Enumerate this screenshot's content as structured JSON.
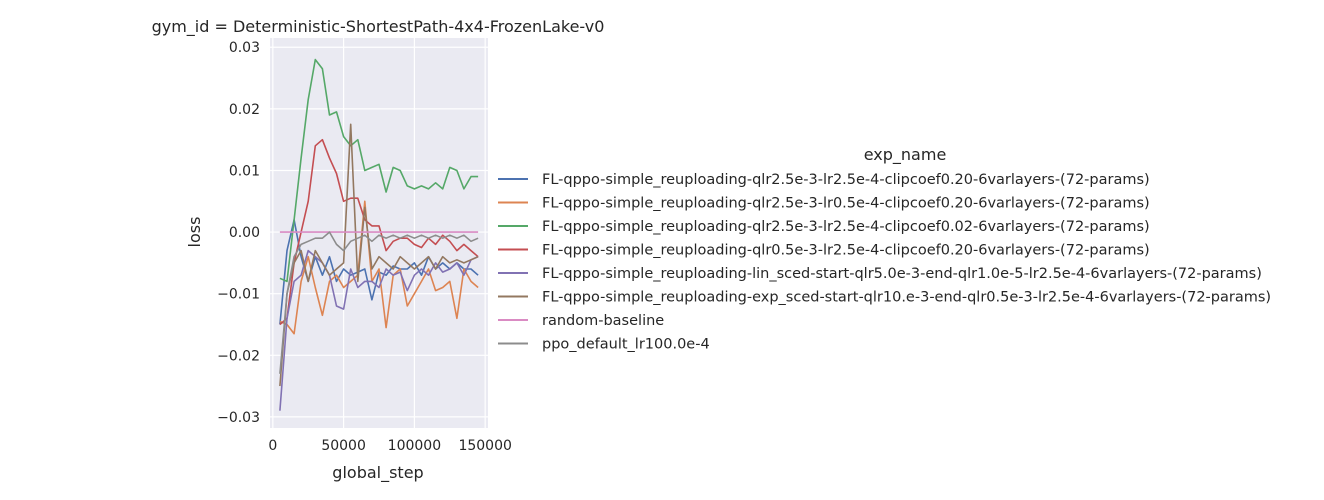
{
  "chart_data": {
    "type": "line",
    "title": "gym_id = Deterministic-ShortestPath-4x4-FrozenLake-v0",
    "xlabel": "global_step",
    "ylabel": "loss",
    "xlim": [
      -2000,
      152000
    ],
    "ylim": [
      -0.0318,
      0.0315
    ],
    "xticks": [
      0,
      50000,
      100000,
      150000
    ],
    "xtick_labels": [
      "0",
      "50000",
      "100000",
      "150000"
    ],
    "yticks": [
      -0.03,
      -0.02,
      -0.01,
      0.0,
      0.01,
      0.02,
      0.03
    ],
    "ytick_labels": [
      "−0.03",
      "−0.02",
      "−0.01",
      "0.00",
      "0.01",
      "0.02",
      "0.03"
    ],
    "grid": true,
    "legend_title": "exp_name",
    "legend_position": "right",
    "x": [
      5000,
      10000,
      15000,
      20000,
      25000,
      30000,
      35000,
      40000,
      45000,
      50000,
      55000,
      60000,
      65000,
      70000,
      75000,
      80000,
      85000,
      90000,
      95000,
      100000,
      105000,
      110000,
      115000,
      120000,
      125000,
      130000,
      135000,
      140000,
      145000
    ],
    "series": [
      {
        "name": "FL-qppo-simple_reuploading-qlr2.5e-3-lr2.5e-4-clipcoef0.20-6varlayers-(72-params)",
        "color": "#4c72b0",
        "values": [
          -0.015,
          -0.003,
          0.002,
          -0.004,
          -0.008,
          -0.004,
          -0.007,
          -0.004,
          -0.008,
          -0.006,
          -0.007,
          -0.0065,
          -0.006,
          -0.011,
          -0.0065,
          -0.007,
          -0.0055,
          -0.006,
          -0.006,
          -0.005,
          -0.007,
          -0.004,
          -0.006,
          -0.005,
          -0.006,
          -0.005,
          -0.006,
          -0.006,
          -0.007
        ]
      },
      {
        "name": "FL-qppo-simple_reuploading-qlr2.5e-3-lr0.5e-4-clipcoef0.20-6varlayers-(72-params)",
        "color": "#dd8452",
        "values": [
          -0.0145,
          -0.015,
          -0.0165,
          -0.008,
          -0.004,
          -0.009,
          -0.0135,
          -0.008,
          -0.007,
          -0.009,
          -0.008,
          -0.007,
          0.005,
          -0.008,
          -0.006,
          -0.0155,
          -0.007,
          -0.006,
          -0.012,
          -0.01,
          -0.008,
          -0.006,
          -0.0095,
          -0.009,
          -0.008,
          -0.014,
          -0.006,
          -0.008,
          -0.009
        ]
      },
      {
        "name": "FL-qppo-simple_reuploading-qlr2.5e-3-lr2.5e-4-clipcoef0.02-6varlayers-(72-params)",
        "color": "#55a868",
        "values": [
          -0.0075,
          -0.008,
          0.002,
          0.012,
          0.0215,
          0.028,
          0.0265,
          0.019,
          0.0195,
          0.0155,
          0.014,
          0.015,
          0.01,
          0.0105,
          0.011,
          0.0065,
          0.0105,
          0.01,
          0.0075,
          0.007,
          0.0075,
          0.007,
          0.008,
          0.007,
          0.0105,
          0.01,
          0.007,
          0.009,
          0.009
        ]
      },
      {
        "name": "FL-qppo-simple_reuploading-qlr0.5e-3-lr2.5e-4-clipcoef0.20-6varlayers-(72-params)",
        "color": "#c44e52",
        "values": [
          -0.015,
          -0.014,
          -0.005,
          0.0,
          0.005,
          0.014,
          0.015,
          0.012,
          0.0095,
          0.005,
          0.0055,
          0.0055,
          0.002,
          0.001,
          0.001,
          -0.003,
          -0.0015,
          -0.001,
          -0.001,
          -0.002,
          -0.0025,
          -0.001,
          -0.002,
          -0.0005,
          -0.0015,
          -0.003,
          -0.002,
          -0.003,
          -0.004
        ]
      },
      {
        "name": "FL-qppo-simple_reuploading-lin_sced-start-qlr5.0e-3-end-qlr1.0e-5-lr2.5e-4-6varlayers-(72-params)",
        "color": "#8172b3",
        "values": [
          -0.029,
          -0.014,
          -0.008,
          -0.007,
          -0.003,
          -0.004,
          -0.005,
          -0.007,
          -0.012,
          -0.0125,
          -0.006,
          -0.009,
          -0.008,
          -0.008,
          -0.009,
          -0.006,
          -0.007,
          -0.0065,
          -0.0095,
          -0.007,
          -0.006,
          -0.007,
          -0.005,
          -0.0065,
          -0.006,
          -0.005,
          -0.007,
          -0.0045,
          -0.004
        ]
      },
      {
        "name": "FL-qppo-simple_reuploading-exp_sced-start-qlr10.e-3-end-qlr0.5e-3-lr2.5e-4-6varlayers-(72-params)",
        "color": "#937860",
        "values": [
          -0.025,
          -0.01,
          -0.005,
          -0.003,
          -0.008,
          -0.003,
          -0.005,
          -0.007,
          -0.006,
          -0.005,
          0.0175,
          -0.008,
          0.004,
          -0.006,
          -0.004,
          -0.005,
          -0.006,
          -0.004,
          -0.005,
          -0.006,
          -0.005,
          -0.004,
          -0.006,
          -0.004,
          -0.005,
          -0.0045,
          -0.005,
          -0.0045,
          -0.004
        ]
      },
      {
        "name": "random-baseline",
        "color": "#da8bc3",
        "values": [
          0.0,
          0.0,
          0.0,
          0.0,
          0.0,
          0.0,
          0.0,
          0.0,
          0.0,
          0.0,
          0.0,
          0.0,
          0.0,
          0.0,
          0.0,
          0.0,
          0.0,
          0.0,
          0.0,
          0.0,
          0.0,
          0.0,
          0.0,
          0.0,
          0.0,
          0.0,
          0.0,
          0.0,
          0.0
        ]
      },
      {
        "name": "ppo_default_lr100.0e-4",
        "color": "#8c8c8c",
        "values": [
          -0.023,
          -0.01,
          -0.004,
          -0.002,
          -0.0015,
          -0.001,
          -0.001,
          0.0,
          -0.002,
          -0.003,
          -0.0015,
          -0.001,
          -0.0005,
          -0.0015,
          -0.0005,
          -0.001,
          -0.0005,
          -0.001,
          -0.0005,
          -0.001,
          -0.0005,
          -0.001,
          -0.0005,
          -0.001,
          -0.0005,
          -0.001,
          -0.0005,
          -0.0015,
          -0.001
        ]
      }
    ]
  }
}
